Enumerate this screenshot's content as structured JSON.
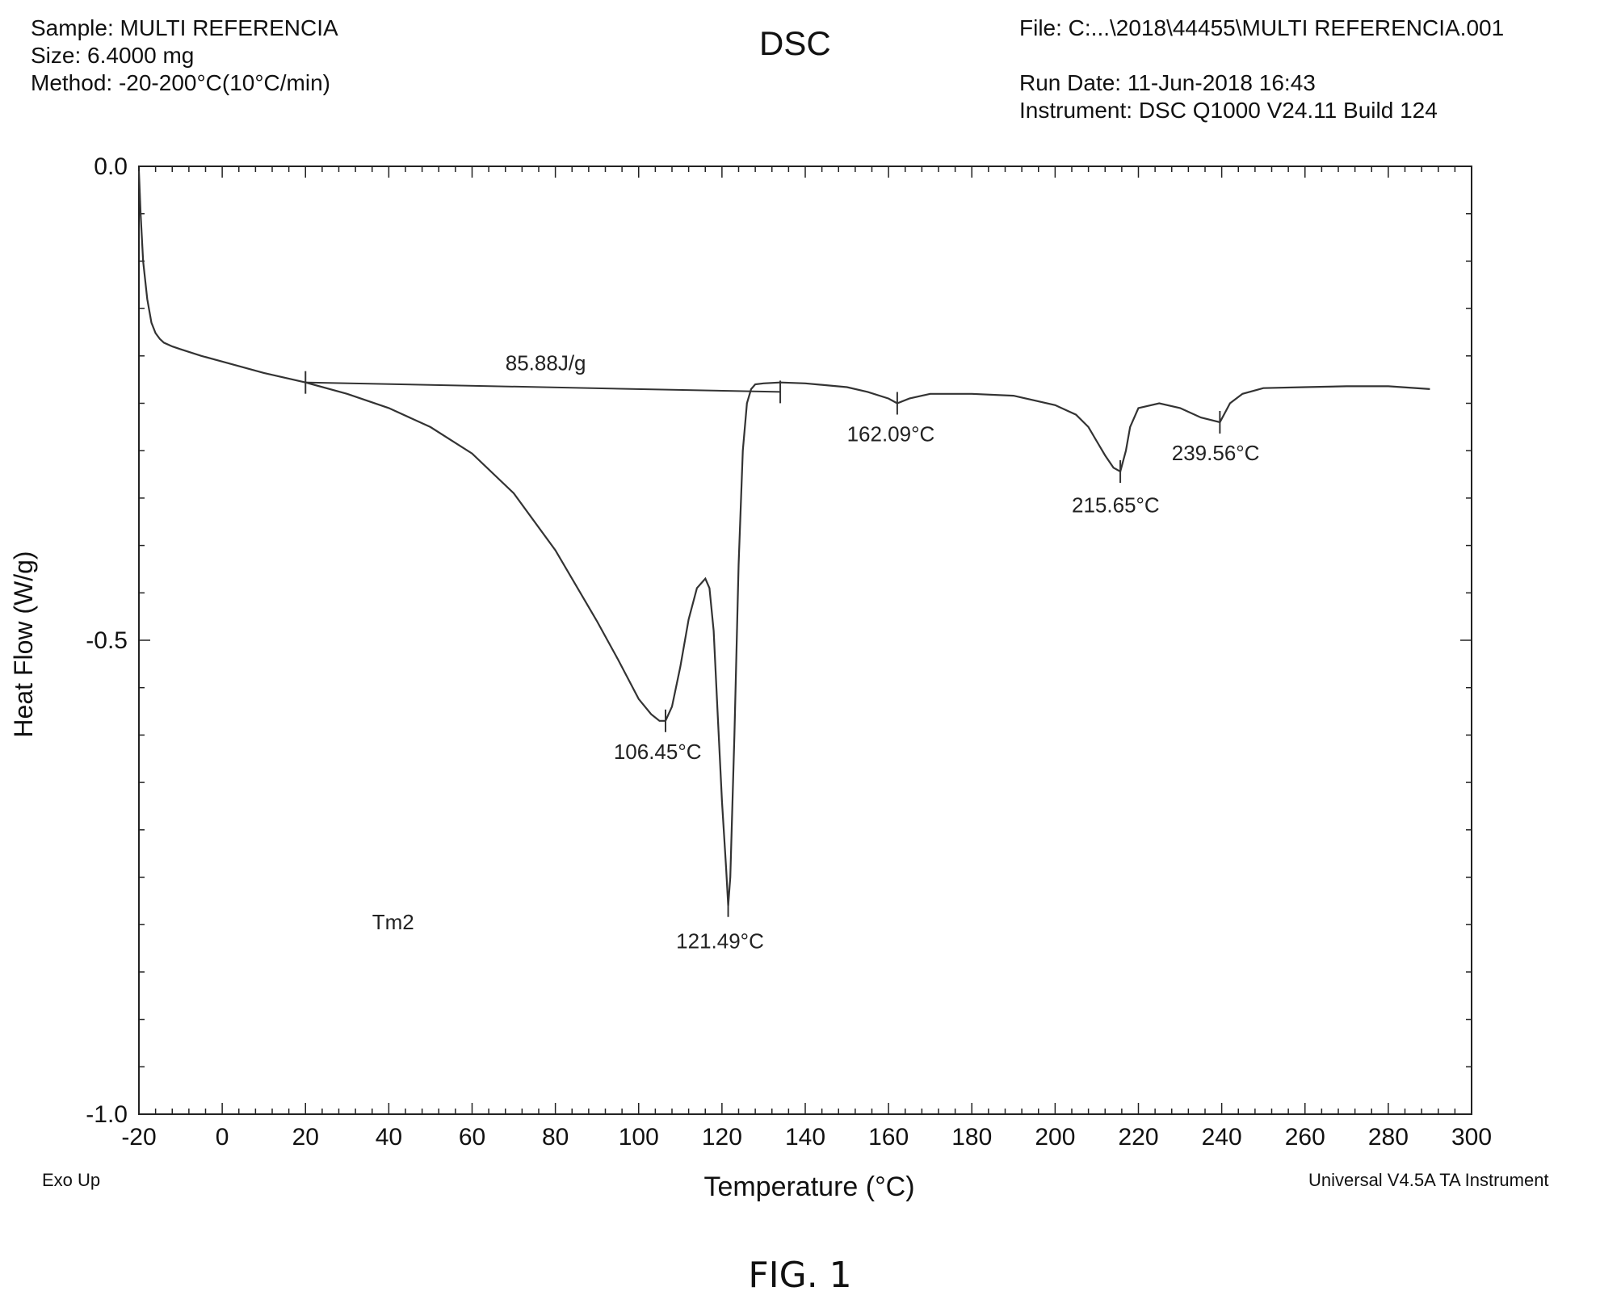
{
  "header": {
    "sample": "Sample: MULTI REFERENCIA",
    "size": "Size:  6.4000 mg",
    "method": "Method: -20-200°C(10°C/min)",
    "file": "File: C:...\\2018\\44455\\MULTI REFERENCIA.001",
    "run_date": "Run Date: 11-Jun-2018 16:43",
    "instrument": "Instrument: DSC Q1000 V24.11 Build 124"
  },
  "footer": {
    "exo": "Exo Up",
    "software": "Universal V4.5A TA Instrument",
    "figure": "FIG. 1"
  },
  "colors": {
    "line": "#333333",
    "axis": "#222222"
  },
  "chart_data": {
    "type": "line",
    "title": "DSC",
    "xlabel": "Temperature (°C)",
    "ylabel": "Heat Flow (W/g)",
    "xlim": [
      -20,
      300
    ],
    "ylim": [
      -1.0,
      0.0
    ],
    "x_ticks": [
      -20,
      0,
      20,
      40,
      60,
      80,
      100,
      120,
      140,
      160,
      180,
      200,
      220,
      240,
      260,
      280,
      300
    ],
    "y_ticks": [
      0.0,
      -0.5,
      -1.0
    ],
    "y_tick_labels": [
      "0.0",
      "-0.5",
      "-1.0"
    ],
    "grid": false,
    "series": [
      {
        "x": [
          -20,
          -19.6,
          -19,
          -18,
          -17,
          -16,
          -15,
          -14,
          -12,
          -10,
          -5,
          0,
          10,
          20,
          30,
          40,
          50,
          60,
          70,
          80,
          90,
          95,
          100,
          103,
          105,
          106.45,
          108,
          110,
          112,
          114,
          116,
          117,
          118,
          119,
          120,
          121,
          121.49,
          122,
          123,
          124,
          125,
          126,
          127,
          128,
          130,
          134,
          140,
          150,
          155,
          160,
          162.09,
          165,
          170,
          180,
          190,
          200,
          205,
          208,
          210,
          212,
          214,
          215.65,
          217,
          218,
          220,
          225,
          230,
          235,
          239.56,
          242,
          245,
          250,
          260,
          270,
          280,
          290
        ],
        "y": [
          -0.005,
          -0.05,
          -0.1,
          -0.14,
          -0.165,
          -0.176,
          -0.182,
          -0.186,
          -0.19,
          -0.193,
          -0.2,
          -0.206,
          -0.218,
          -0.228,
          -0.24,
          -0.255,
          -0.275,
          -0.303,
          -0.345,
          -0.405,
          -0.48,
          -0.52,
          -0.562,
          -0.578,
          -0.585,
          -0.585,
          -0.57,
          -0.528,
          -0.478,
          -0.445,
          -0.435,
          -0.445,
          -0.49,
          -0.58,
          -0.67,
          -0.74,
          -0.78,
          -0.75,
          -0.6,
          -0.42,
          -0.3,
          -0.25,
          -0.235,
          -0.23,
          -0.229,
          -0.228,
          -0.229,
          -0.233,
          -0.238,
          -0.245,
          -0.25,
          -0.245,
          -0.24,
          -0.24,
          -0.242,
          -0.252,
          -0.262,
          -0.275,
          -0.29,
          -0.305,
          -0.318,
          -0.322,
          -0.3,
          -0.275,
          -0.255,
          -0.25,
          -0.255,
          -0.265,
          -0.27,
          -0.25,
          -0.24,
          -0.234,
          -0.233,
          -0.232,
          -0.232,
          -0.235
        ]
      }
    ],
    "baseline": {
      "x": [
        20,
        134
      ],
      "y": [
        -0.228,
        -0.238
      ]
    },
    "markers": [
      {
        "x": 20,
        "y": -0.228
      },
      {
        "x": 134,
        "y": -0.238
      },
      {
        "x": 106.45,
        "y": -0.585
      },
      {
        "x": 121.49,
        "y": -0.78
      },
      {
        "x": 162.09,
        "y": -0.25
      },
      {
        "x": 215.65,
        "y": -0.322
      },
      {
        "x": 239.56,
        "y": -0.27
      }
    ],
    "annotations": [
      {
        "text": "85.88J/g",
        "x": 68,
        "y": -0.215
      },
      {
        "text": "106.45°C",
        "x": 94,
        "y": -0.625
      },
      {
        "text": "121.49°C",
        "x": 109,
        "y": -0.825
      },
      {
        "text": "162.09°C",
        "x": 150,
        "y": -0.29
      },
      {
        "text": "215.65°C",
        "x": 204,
        "y": -0.365
      },
      {
        "text": "239.56°C",
        "x": 228,
        "y": -0.31
      },
      {
        "text": "Tm2",
        "x": 36,
        "y": -0.805
      }
    ]
  }
}
